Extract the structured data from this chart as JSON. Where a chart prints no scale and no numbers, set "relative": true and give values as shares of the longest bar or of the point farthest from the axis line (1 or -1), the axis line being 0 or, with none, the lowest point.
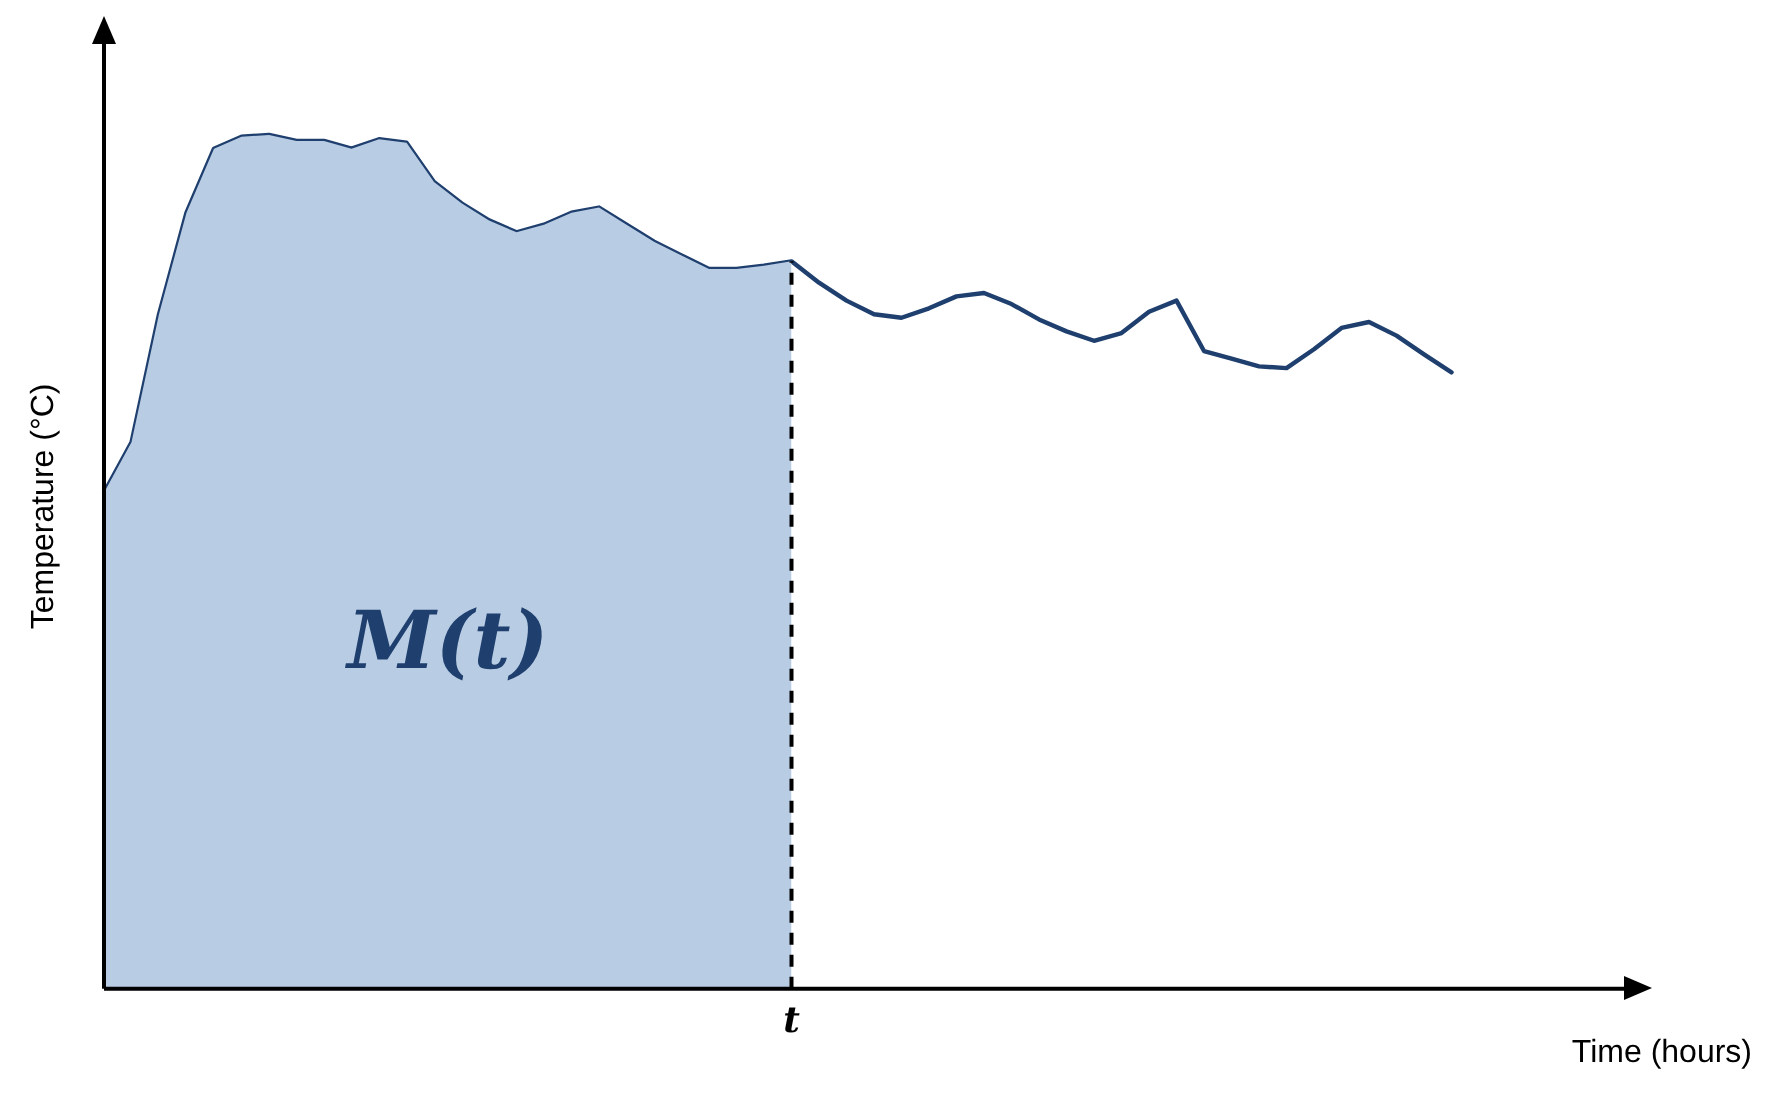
{
  "chart_data": {
    "type": "line",
    "relative": true,
    "xlabel": "Time (hours)",
    "ylabel": "Temperature (°C)",
    "annotations": [
      "M(t)",
      "t"
    ],
    "categories": [
      null,
      null,
      null,
      null,
      null,
      null,
      null,
      null,
      null,
      null,
      null,
      null,
      null,
      null,
      null,
      null,
      null,
      null,
      null,
      null,
      null,
      null,
      null,
      null,
      null,
      null,
      null,
      null,
      null,
      null,
      null,
      null,
      null,
      null,
      null,
      null,
      null,
      null,
      null,
      null,
      null,
      null,
      null,
      null,
      null,
      null,
      null,
      null,
      null,
      null,
      null,
      null,
      null,
      null,
      null,
      null,
      null
    ],
    "series": [
      {
        "type": "area",
        "color": "#b8cce4",
        "values": [
          0.581,
          0.64,
          0.79,
          0.909,
          0.984,
          0.998,
          1.0,
          0.993,
          0.993,
          0.984,
          0.995,
          0.991,
          0.945,
          0.92,
          0.9,
          0.886,
          0.895,
          0.909,
          0.915,
          0.895,
          0.875,
          0.859,
          0.843,
          0.843,
          0.847,
          0.852,
          null,
          null,
          null,
          null,
          null,
          null,
          null,
          null,
          null,
          null,
          null,
          null,
          null,
          null,
          null,
          null,
          null,
          null,
          null,
          null,
          null,
          null,
          null,
          null,
          null,
          null,
          null,
          null,
          null,
          null,
          null
        ]
      },
      {
        "type": "line",
        "color": "#1f3f6e",
        "values": [
          0.581,
          0.64,
          0.79,
          0.909,
          0.984,
          0.998,
          1.0,
          0.993,
          0.993,
          0.984,
          0.995,
          0.991,
          0.945,
          0.92,
          0.9,
          0.886,
          0.895,
          0.909,
          0.915,
          0.895,
          0.875,
          0.859,
          0.843,
          0.843,
          0.847,
          0.852,
          0.827,
          0.806,
          0.79,
          0.786,
          0.797,
          0.811,
          0.815,
          0.802,
          0.784,
          0.77,
          0.759,
          0.768,
          0.793,
          0.806,
          0.747,
          0.738,
          0.729,
          0.727,
          0.749,
          0.774,
          0.781,
          0.765,
          0.743,
          0.722,
          null,
          null,
          null,
          null,
          null,
          null,
          null
        ]
      }
    ],
    "grid": false,
    "legend": false,
    "marker": "none",
    "line_style": "solid"
  }
}
